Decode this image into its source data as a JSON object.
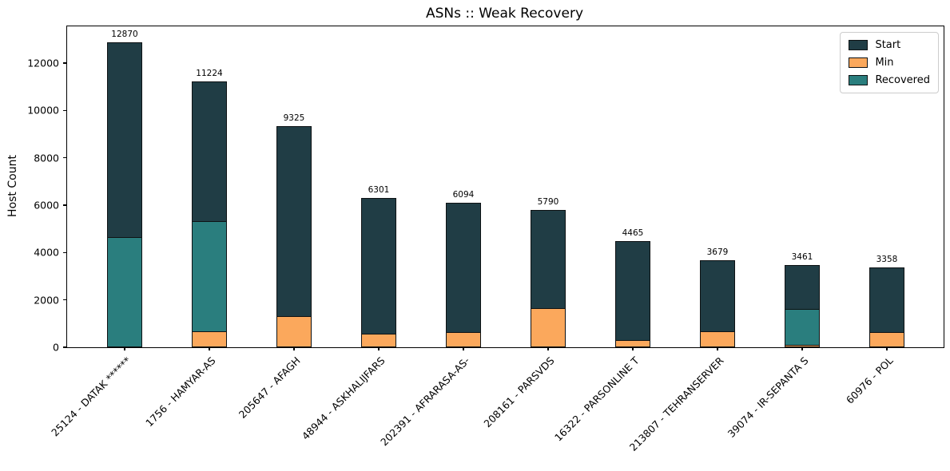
{
  "chart_data": {
    "type": "bar",
    "title": "ASNs :: Weak Recovery",
    "xlabel": "",
    "ylabel": "Host Count",
    "ylim": [
      0,
      13545
    ],
    "y_ticks": [
      0,
      2000,
      4000,
      6000,
      8000,
      10000,
      12000
    ],
    "grid": false,
    "legend_position": "top-right",
    "bar_style": "overlay",
    "categories": [
      "25124 - DATAK ******",
      "1756 - HAMYAR-AS",
      "205647 - AFAGH",
      "48944 - ASKHALIJFARS",
      "202391 - AFRARASA-AS-",
      "208161 - PARSVDS",
      "16322 - PARSONLINE T",
      "213807 - TEHRANSERVER",
      "39074 - IR-SEPANTA S",
      "60976 - POL"
    ],
    "series": [
      {
        "name": "Start",
        "color": "#203d45",
        "values": [
          12870,
          11224,
          9325,
          6301,
          6094,
          5790,
          4465,
          3679,
          3461,
          3358
        ]
      },
      {
        "name": "Min",
        "color": "#fba85c",
        "values": [
          0,
          680,
          1330,
          580,
          630,
          1640,
          290,
          665,
          110,
          630
        ]
      },
      {
        "name": "Recovered",
        "color": "#2a7e7e",
        "values": [
          4650,
          5330,
          null,
          null,
          null,
          null,
          null,
          null,
          1620,
          null
        ]
      }
    ],
    "bar_value_labels": [
      "12870",
      "11224",
      "9325",
      "6301",
      "6094",
      "5790",
      "4465",
      "3679",
      "3461",
      "3358"
    ],
    "edge_color": "#0e1214"
  }
}
